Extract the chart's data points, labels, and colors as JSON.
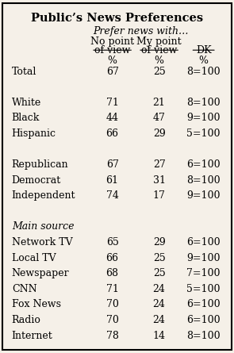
{
  "title": "Public’s News Preferences",
  "subtitle_italic": "Prefer news with…",
  "rows": [
    {
      "label": "Total",
      "italic": false,
      "col1": "67",
      "col2": "25",
      "col3": "8=100"
    },
    {
      "label": "",
      "italic": false,
      "col1": "",
      "col2": "",
      "col3": ""
    },
    {
      "label": "White",
      "italic": false,
      "col1": "71",
      "col2": "21",
      "col3": "8=100"
    },
    {
      "label": "Black",
      "italic": false,
      "col1": "44",
      "col2": "47",
      "col3": "9=100"
    },
    {
      "label": "Hispanic",
      "italic": false,
      "col1": "66",
      "col2": "29",
      "col3": "5=100"
    },
    {
      "label": "",
      "italic": false,
      "col1": "",
      "col2": "",
      "col3": ""
    },
    {
      "label": "Republican",
      "italic": false,
      "col1": "67",
      "col2": "27",
      "col3": "6=100"
    },
    {
      "label": "Democrat",
      "italic": false,
      "col1": "61",
      "col2": "31",
      "col3": "8=100"
    },
    {
      "label": "Independent",
      "italic": false,
      "col1": "74",
      "col2": "17",
      "col3": "9=100"
    },
    {
      "label": "",
      "italic": false,
      "col1": "",
      "col2": "",
      "col3": ""
    },
    {
      "label": "Main source",
      "italic": true,
      "col1": "",
      "col2": "",
      "col3": ""
    },
    {
      "label": "Network TV",
      "italic": false,
      "col1": "65",
      "col2": "29",
      "col3": "6=100"
    },
    {
      "label": "Local TV",
      "italic": false,
      "col1": "66",
      "col2": "25",
      "col3": "9=100"
    },
    {
      "label": "Newspaper",
      "italic": false,
      "col1": "68",
      "col2": "25",
      "col3": "7=100"
    },
    {
      "label": "CNN",
      "italic": false,
      "col1": "71",
      "col2": "24",
      "col3": "5=100"
    },
    {
      "label": "Fox News",
      "italic": false,
      "col1": "70",
      "col2": "24",
      "col3": "6=100"
    },
    {
      "label": "Radio",
      "italic": false,
      "col1": "70",
      "col2": "24",
      "col3": "6=100"
    },
    {
      "label": "Internet",
      "italic": false,
      "col1": "78",
      "col2": "14",
      "col3": "8=100"
    }
  ],
  "bg_color": "#f5f0e8",
  "border_color": "#000000",
  "text_color": "#000000",
  "font_size": 9,
  "title_font_size": 10.5
}
